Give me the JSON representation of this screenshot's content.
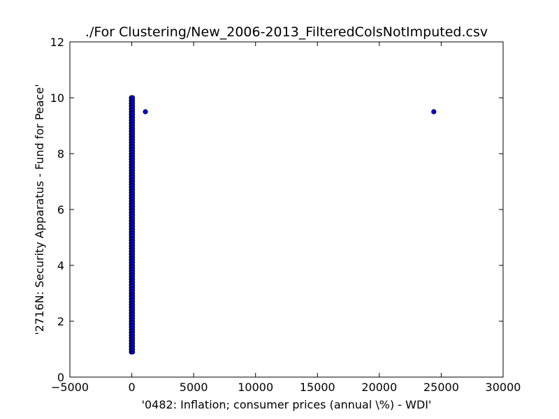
{
  "chart_data": {
    "type": "scatter",
    "title": "./For Clustering/New_2006-2013_FilteredColsNotImputed.csv",
    "xlabel": "'0482: Inflation; consumer prices  (annual \\%) - WDI'",
    "ylabel": "'2716N: Security Apparatus - Fund for Peace'",
    "xlim": [
      -5000,
      30000
    ],
    "ylim": [
      0,
      12
    ],
    "xticks": [
      -5000,
      0,
      5000,
      10000,
      15000,
      20000,
      25000,
      30000
    ],
    "yticks": [
      0,
      2,
      4,
      6,
      8,
      10,
      12
    ],
    "grid": false,
    "legend": "none",
    "marker_color": "#0000ff",
    "marker_edge_color": "#000000",
    "cluster": {
      "x_min": -30,
      "x_max": 60,
      "y_min": 0.9,
      "y_max": 10.0,
      "y_step": 0.1
    },
    "points": [
      {
        "x": 1100,
        "y": 9.5
      },
      {
        "x": 24400,
        "y": 9.5
      }
    ]
  }
}
